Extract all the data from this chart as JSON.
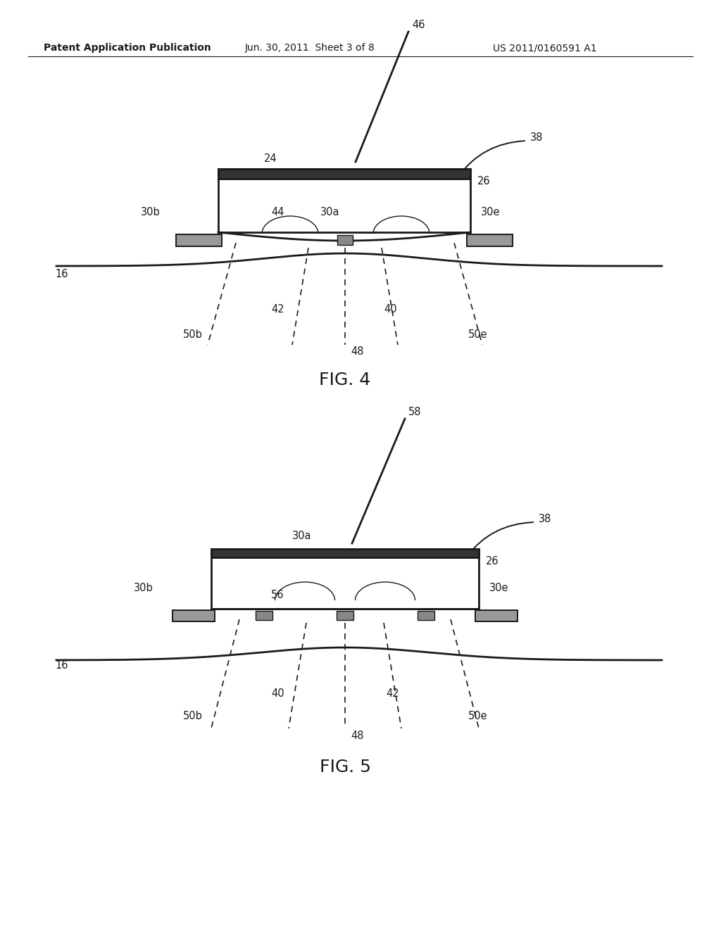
{
  "bg_color": "#ffffff",
  "line_color": "#1a1a1a",
  "header_left": "Patent Application Publication",
  "header_mid": "Jun. 30, 2011  Sheet 3 of 8",
  "header_right": "US 2011/0160591 A1",
  "fig4_label": "FIG. 4",
  "fig5_label": "FIG. 5"
}
